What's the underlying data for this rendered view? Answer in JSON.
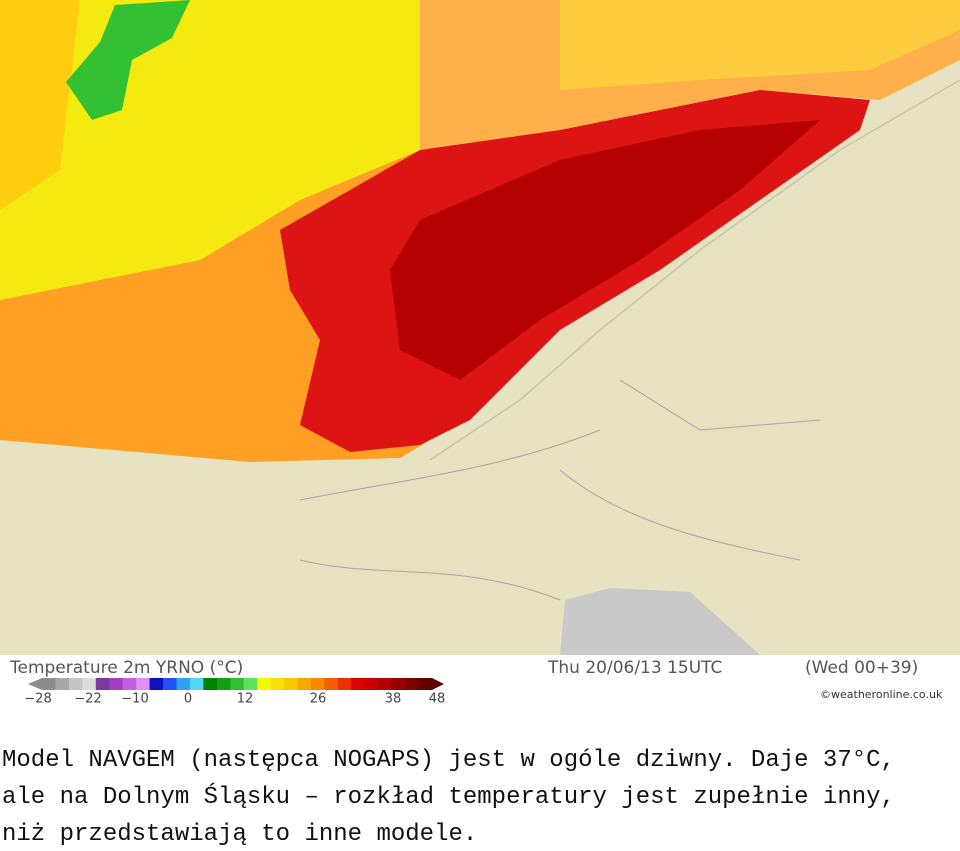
{
  "legend": {
    "title": "Temperature 2m YRNO (°C)",
    "valid_time": "Thu 20/06/13 15UTC",
    "run": "(Wed 00+39)",
    "credit": "©weatheronline.co.uk",
    "ticks": [
      "−28",
      "−22",
      "−10",
      "0",
      "12",
      "26",
      "38",
      "48"
    ],
    "colors": [
      "#8c8c8c",
      "#a8a8a8",
      "#c4c4c4",
      "#dcdcdc",
      "#7a3a9a",
      "#a040c0",
      "#c060e0",
      "#e090f0",
      "#1010c0",
      "#2050f0",
      "#30a0f0",
      "#50d8f8",
      "#008000",
      "#10a010",
      "#30c030",
      "#60e060",
      "#f8f800",
      "#f8e000",
      "#f8c800",
      "#f8a800",
      "#f88800",
      "#f06000",
      "#e83000",
      "#e00000",
      "#c80000",
      "#b00000",
      "#980000",
      "#800000",
      "#600000"
    ]
  },
  "caption": [
    "Model NAVGEM (następca NOGAPS) jest w ogóle dziwny. Daje 37°C,",
    "ale na Dolnym Śląsku – rozkład temperatury jest zupełnie inny,",
    "niż przedstawiają to inne modele."
  ]
}
